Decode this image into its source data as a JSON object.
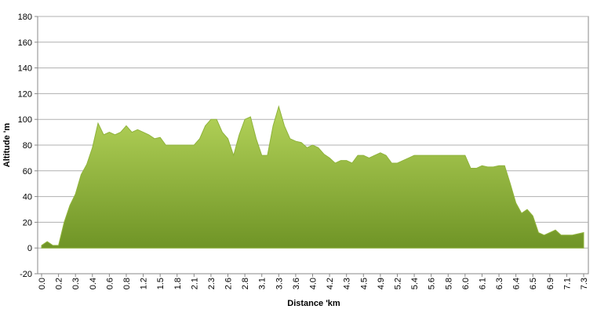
{
  "chart_data": {
    "type": "area",
    "x_label": "Distance  'km",
    "y_label": "Altitude  'm",
    "categories": [
      "0.0",
      null,
      null,
      "0.2",
      null,
      null,
      "0.3",
      null,
      null,
      "0.4",
      null,
      null,
      "0.6",
      null,
      null,
      "0.8",
      null,
      null,
      "1.2",
      null,
      null,
      "1.5",
      null,
      null,
      "1.8",
      null,
      null,
      "2.1",
      null,
      null,
      "2.3",
      null,
      null,
      "2.6",
      null,
      null,
      "2.8",
      null,
      null,
      "3.1",
      null,
      null,
      "3.3",
      null,
      null,
      "3.6",
      null,
      null,
      "4.0",
      null,
      null,
      "4.2",
      null,
      null,
      "4.3",
      null,
      null,
      "4.5",
      null,
      null,
      "4.9",
      null,
      null,
      "5.2",
      null,
      null,
      "5.4",
      null,
      null,
      "5.6",
      null,
      null,
      "5.8",
      null,
      null,
      "6.0",
      null,
      null,
      "6.1",
      null,
      null,
      "6.3",
      null,
      null,
      "6.4",
      null,
      null,
      "6.5",
      null,
      null,
      "6.9",
      null,
      null,
      "7.1",
      null,
      null,
      "7.3"
    ],
    "values": [
      2,
      5,
      2,
      2,
      20,
      33,
      42,
      57,
      65,
      78,
      97,
      88,
      90,
      88,
      90,
      95,
      90,
      92,
      90,
      88,
      85,
      86,
      80,
      80,
      80,
      80,
      80,
      80,
      85,
      95,
      100,
      100,
      90,
      85,
      72,
      88,
      100,
      102,
      85,
      72,
      72,
      95,
      110,
      95,
      85,
      83,
      82,
      78,
      80,
      78,
      73,
      70,
      66,
      68,
      68,
      66,
      72,
      72,
      70,
      72,
      74,
      72,
      66,
      66,
      68,
      70,
      72,
      72,
      72,
      72,
      72,
      72,
      72,
      72,
      72,
      72,
      62,
      62,
      64,
      63,
      63,
      64,
      64,
      50,
      35,
      27,
      30,
      25,
      12,
      10,
      12,
      14,
      10,
      10,
      10,
      11,
      12
    ],
    "color": "#8fb33b",
    "ylim": [
      -20,
      180
    ],
    "yticks": [
      -20,
      0,
      20,
      40,
      60,
      80,
      100,
      120,
      140,
      160,
      180
    ],
    "grid": true
  }
}
